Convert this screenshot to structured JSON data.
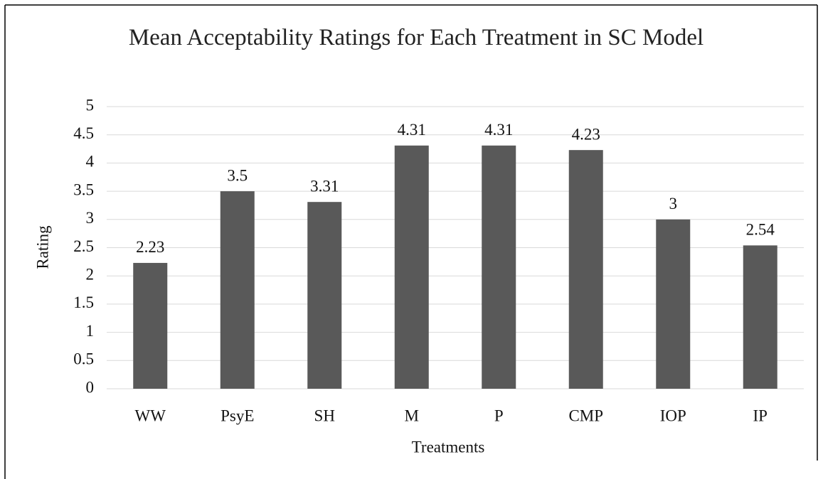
{
  "chart_data": {
    "type": "bar",
    "title": "Mean Acceptability Ratings for Each Treatment in SC Model",
    "x_label": "Treatments",
    "y_label": "Rating",
    "categories": [
      "WW",
      "PsyE",
      "SH",
      "M",
      "P",
      "CMP",
      "IOP",
      "IP"
    ],
    "values": [
      2.23,
      3.5,
      3.31,
      4.31,
      4.31,
      4.23,
      3,
      2.54
    ],
    "color": "#595959",
    "ylim": [
      0,
      5
    ],
    "yticks": [
      0,
      0.5,
      1,
      1.5,
      2,
      2.5,
      3,
      3.5,
      4,
      4.5,
      5
    ],
    "grid": true
  }
}
